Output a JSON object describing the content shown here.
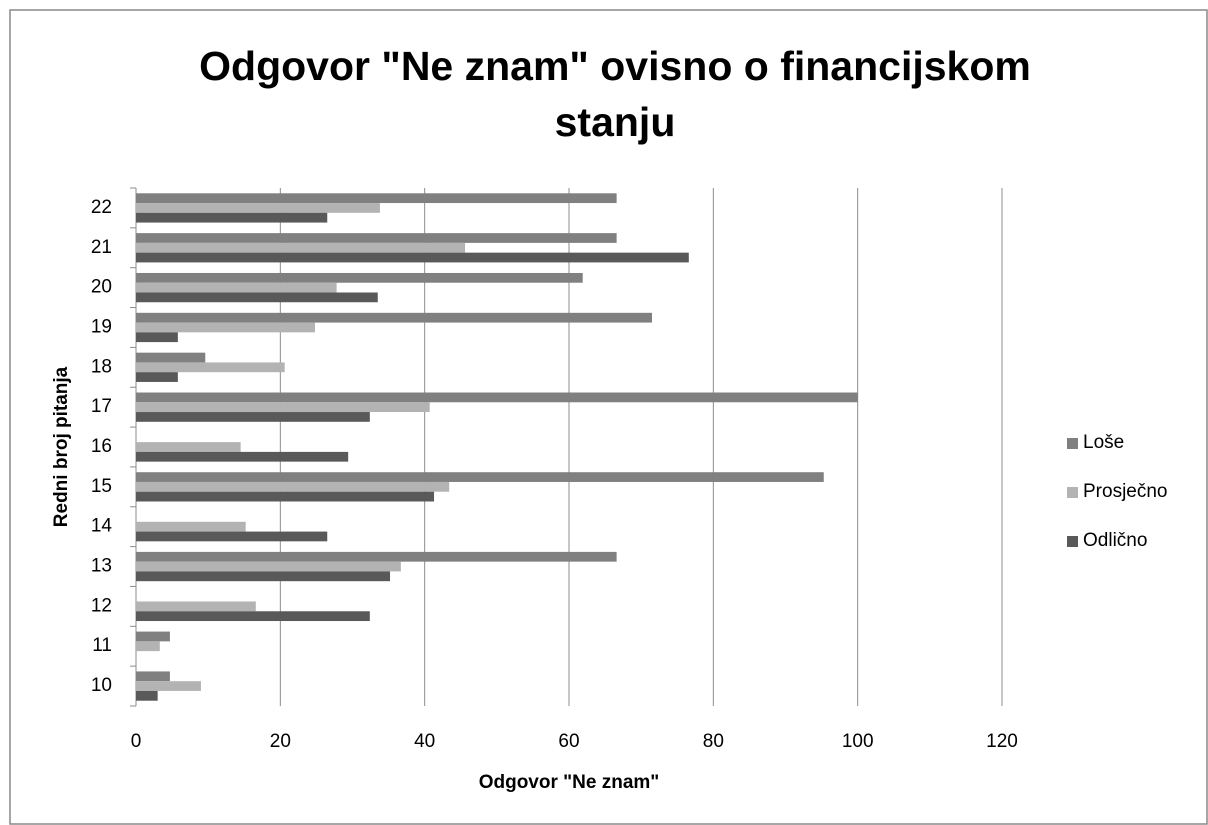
{
  "chart_data": {
    "type": "barh",
    "title": "Odgovor \"Ne znam\" ovisno o financijskom stanju",
    "categories": [
      "10",
      "11",
      "12",
      "13",
      "14",
      "15",
      "16",
      "17",
      "18",
      "19",
      "20",
      "21",
      "22"
    ],
    "series": [
      {
        "name": "Loše",
        "color": "#808080",
        "values": [
          4.7,
          4.7,
          0,
          66.6,
          0,
          95.3,
          0,
          100,
          9.6,
          71.5,
          61.9,
          66.6,
          66.6
        ]
      },
      {
        "name": "Prosječno",
        "color": "#b3b3b3",
        "values": [
          9.0,
          3.3,
          16.6,
          36.7,
          15.2,
          43.4,
          14.5,
          40.7,
          20.6,
          24.8,
          27.8,
          45.6,
          33.8
        ]
      },
      {
        "name": "Odlično",
        "color": "#595959",
        "values": [
          3.0,
          0,
          32.4,
          35.2,
          26.5,
          41.3,
          29.4,
          32.4,
          5.8,
          5.8,
          33.5,
          76.6,
          26.5
        ]
      }
    ],
    "xlabel": "Odgovor \"Ne znam\"",
    "ylabel": "Redni broj pitanja",
    "xlim": [
      0,
      120
    ],
    "xticks": [
      0,
      20,
      40,
      60,
      80,
      100,
      120
    ],
    "grid": true,
    "legend": "right"
  }
}
